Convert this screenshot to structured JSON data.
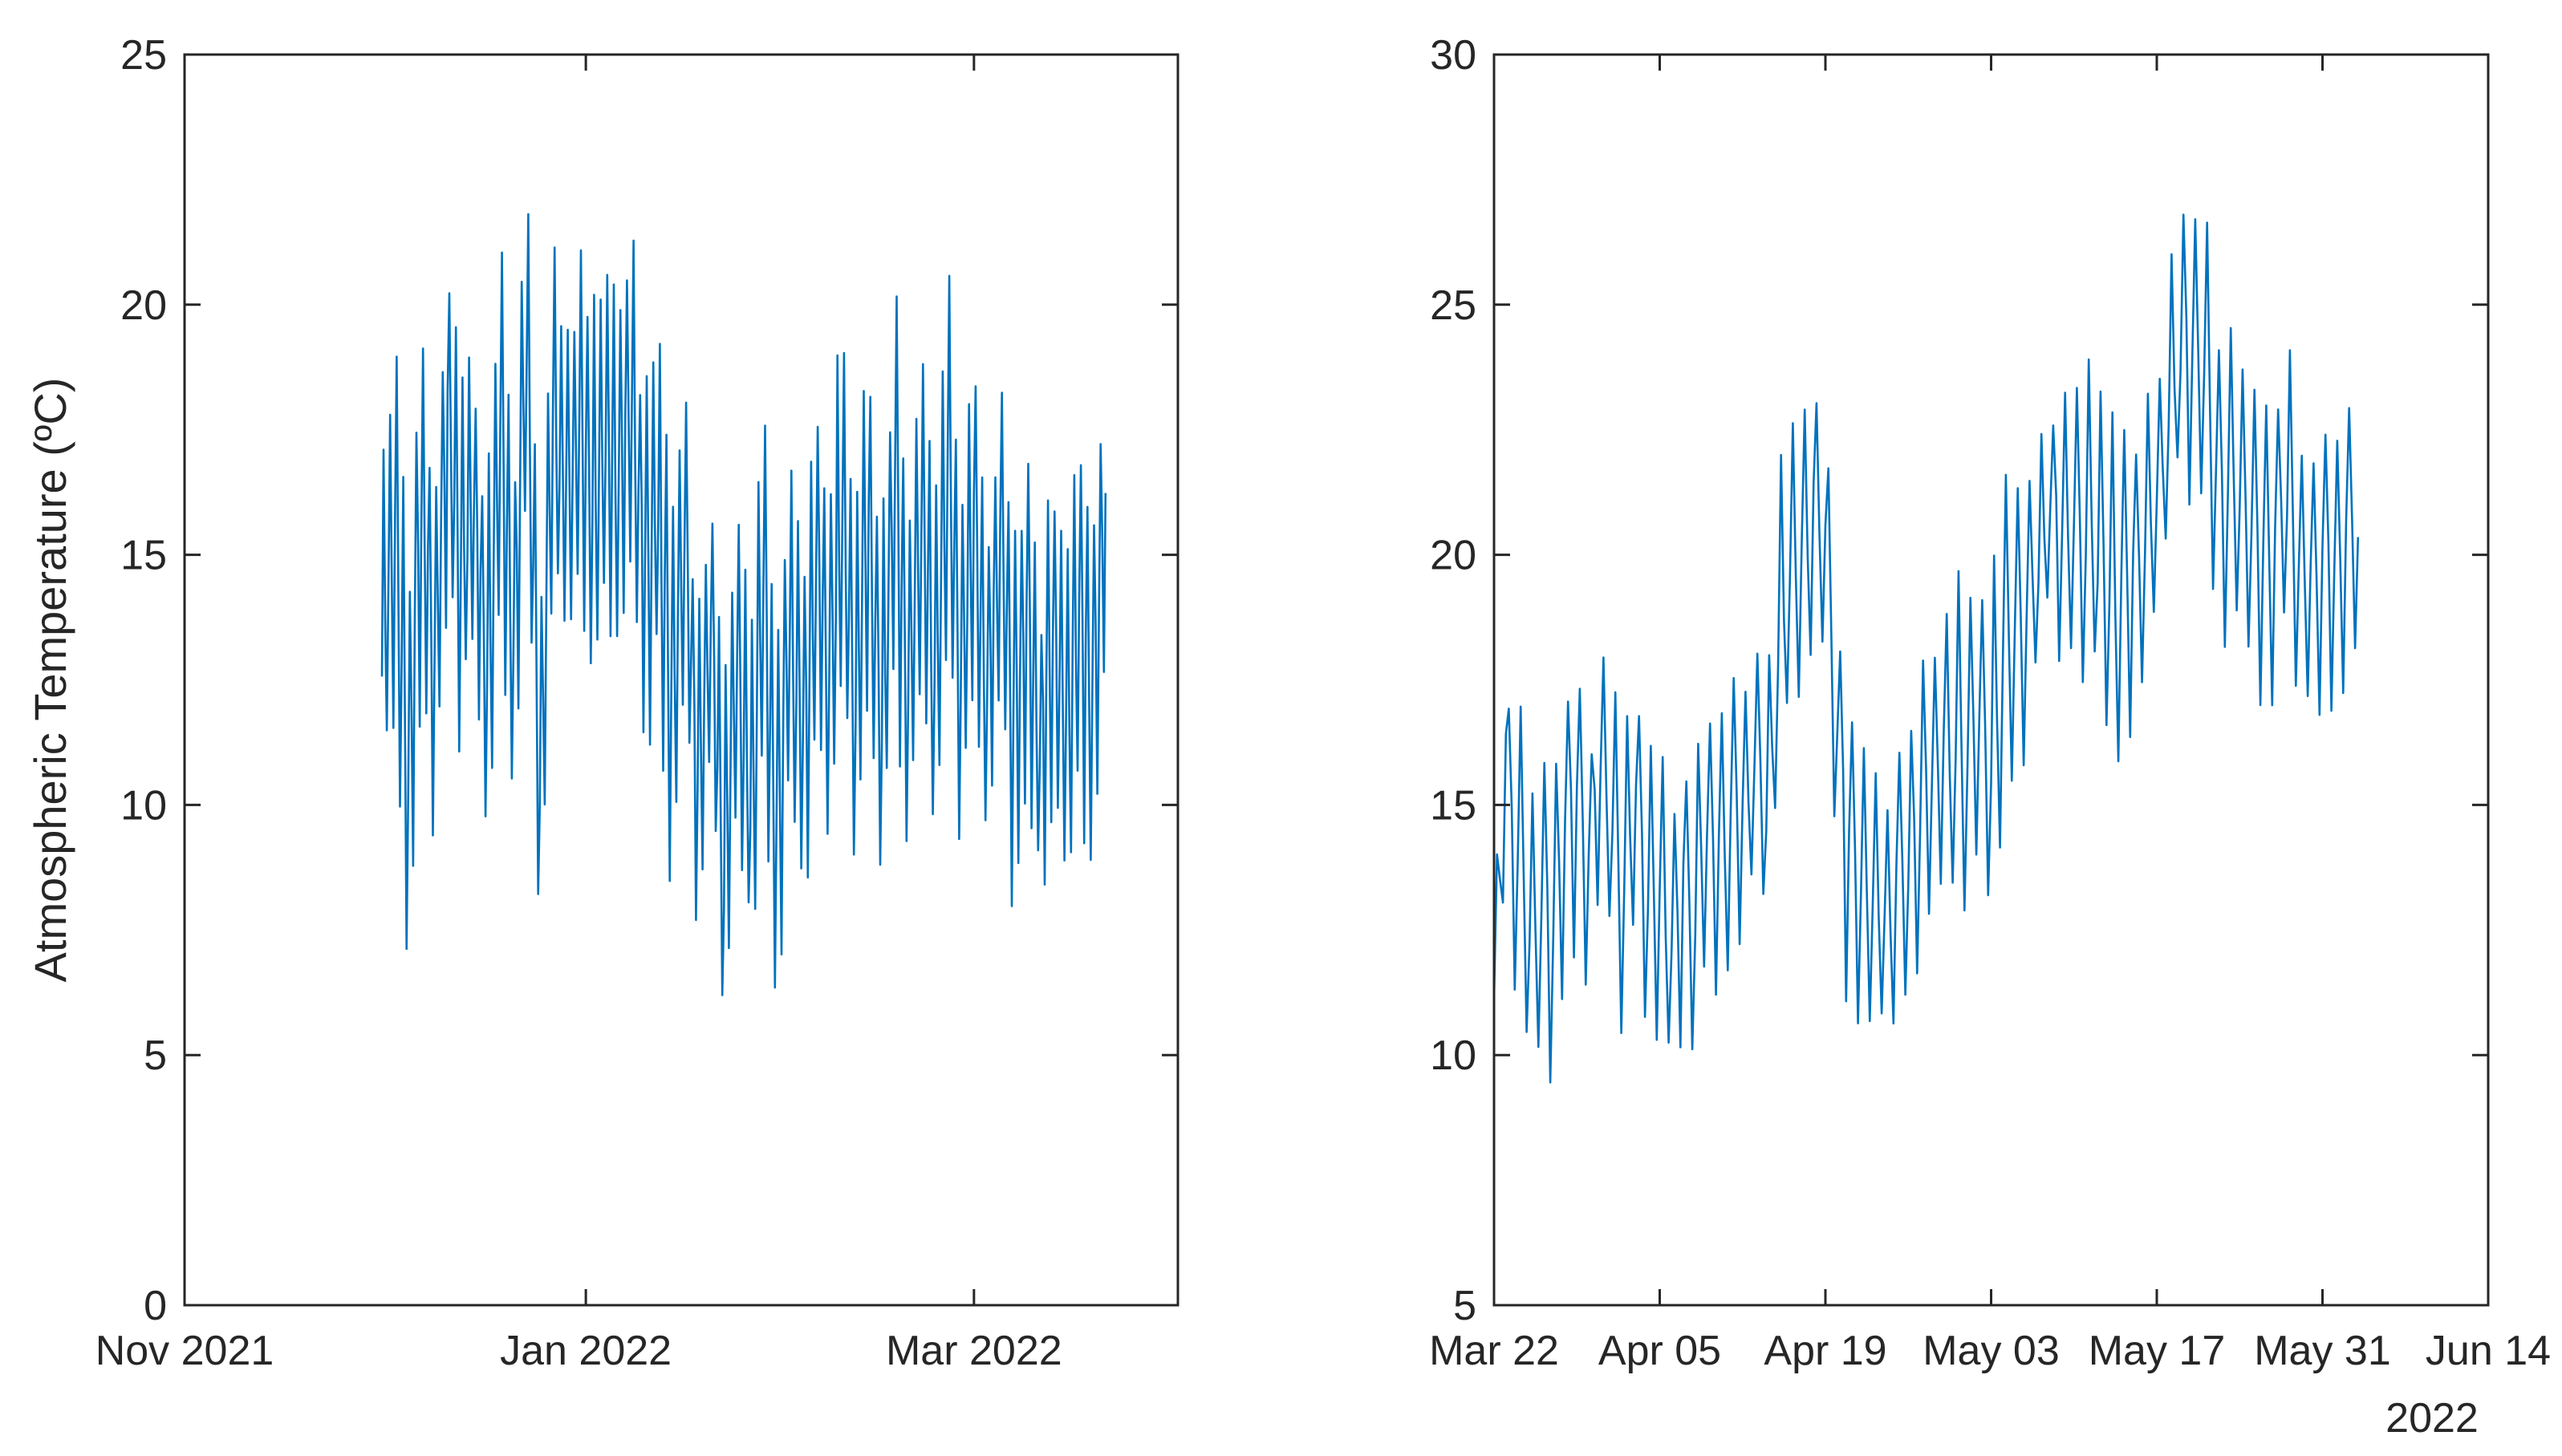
{
  "chart_data": [
    {
      "type": "line",
      "title": "",
      "xlabel": "",
      "ylabel": "Atmospheric Temperature (ºC)",
      "x_range": [
        "2021-11-01",
        "2022-04-01"
      ],
      "ylim": [
        0,
        25
      ],
      "y_ticks": [
        0,
        5,
        10,
        15,
        20,
        25
      ],
      "x_ticks": [
        {
          "date": "2021-11-01",
          "label": "Nov 2021"
        },
        {
          "date": "2022-01-01",
          "label": "Jan 2022"
        },
        {
          "date": "2022-03-01",
          "label": "Mar 2022"
        }
      ],
      "grid": false,
      "series": [
        {
          "color": "#0072BD",
          "points": [
            [
              "2021-12-01",
              12.8
            ],
            [
              "2021-12-03",
              15.5
            ],
            [
              "2021-12-05",
              10.5
            ],
            [
              "2021-12-07",
              16.2
            ],
            [
              "2021-12-09",
              13.0
            ],
            [
              "2021-12-11",
              17.8
            ],
            [
              "2021-12-13",
              14.5
            ],
            [
              "2021-12-15",
              16.0
            ],
            [
              "2021-12-17",
              12.5
            ],
            [
              "2021-12-19",
              17.5
            ],
            [
              "2021-12-21",
              13.5
            ],
            [
              "2021-12-23",
              19.0
            ],
            [
              "2021-12-25",
              10.5
            ],
            [
              "2021-12-27",
              18.0
            ],
            [
              "2021-12-29",
              15.8
            ],
            [
              "2021-12-31",
              17.2
            ],
            [
              "2022-01-02",
              16.0
            ],
            [
              "2022-01-04",
              17.5
            ],
            [
              "2022-01-06",
              16.5
            ],
            [
              "2022-01-08",
              18.0
            ],
            [
              "2022-01-10",
              14.5
            ],
            [
              "2022-01-12",
              16.0
            ],
            [
              "2022-01-14",
              12.0
            ],
            [
              "2022-01-16",
              15.5
            ],
            [
              "2022-01-18",
              10.5
            ],
            [
              "2022-01-20",
              14.0
            ],
            [
              "2022-01-22",
              8.5
            ],
            [
              "2022-01-24",
              13.0
            ],
            [
              "2022-01-26",
              10.0
            ],
            [
              "2022-01-28",
              14.5
            ],
            [
              "2022-01-30",
              9.5
            ],
            [
              "2022-02-01",
              14.0
            ],
            [
              "2022-02-03",
              11.0
            ],
            [
              "2022-02-05",
              15.0
            ],
            [
              "2022-02-07",
              12.5
            ],
            [
              "2022-02-09",
              16.0
            ],
            [
              "2022-02-11",
              12.0
            ],
            [
              "2022-02-13",
              15.5
            ],
            [
              "2022-02-15",
              11.5
            ],
            [
              "2022-02-17",
              16.5
            ],
            [
              "2022-02-19",
              12.0
            ],
            [
              "2022-02-21",
              15.8
            ],
            [
              "2022-02-23",
              12.5
            ],
            [
              "2022-02-25",
              17.0
            ],
            [
              "2022-02-27",
              12.5
            ],
            [
              "2022-03-01",
              16.0
            ],
            [
              "2022-03-03",
              12.0
            ],
            [
              "2022-03-05",
              15.5
            ],
            [
              "2022-03-07",
              11.5
            ],
            [
              "2022-03-09",
              14.5
            ],
            [
              "2022-03-11",
              11.0
            ],
            [
              "2022-03-13",
              13.5
            ],
            [
              "2022-03-15",
              11.5
            ],
            [
              "2022-03-17",
              14.0
            ],
            [
              "2022-03-19",
              12.0
            ],
            [
              "2022-03-21",
              16.5
            ]
          ]
        }
      ]
    },
    {
      "type": "line",
      "title": "",
      "xlabel": "",
      "ylabel": "",
      "x_range": [
        "2022-03-22",
        "2022-06-14"
      ],
      "ylim": [
        5,
        30
      ],
      "y_ticks": [
        5,
        10,
        15,
        20,
        25,
        30
      ],
      "x_ticks": [
        {
          "date": "2022-03-22",
          "label": "Mar 22"
        },
        {
          "date": "2022-04-05",
          "label": "Apr 05"
        },
        {
          "date": "2022-04-19",
          "label": "Apr 19"
        },
        {
          "date": "2022-05-03",
          "label": "May 03"
        },
        {
          "date": "2022-05-17",
          "label": "May 17"
        },
        {
          "date": "2022-05-31",
          "label": "May 31"
        },
        {
          "date": "2022-06-14",
          "label": "Jun 14"
        }
      ],
      "x_secondary_label": "2022",
      "grid": false,
      "series": [
        {
          "color": "#0072BD",
          "points": [
            [
              "2022-03-22",
              11.0
            ],
            [
              "2022-03-23",
              16.0
            ],
            [
              "2022-03-24",
              13.5
            ],
            [
              "2022-03-25",
              12.8
            ],
            [
              "2022-03-26",
              13.2
            ],
            [
              "2022-03-27",
              12.5
            ],
            [
              "2022-03-28",
              14.5
            ],
            [
              "2022-03-29",
              15.0
            ],
            [
              "2022-03-30",
              14.0
            ],
            [
              "2022-03-31",
              15.5
            ],
            [
              "2022-04-01",
              14.5
            ],
            [
              "2022-04-02",
              13.5
            ],
            [
              "2022-04-03",
              15.0
            ],
            [
              "2022-04-04",
              13.0
            ],
            [
              "2022-04-05",
              13.5
            ],
            [
              "2022-04-06",
              12.0
            ],
            [
              "2022-04-07",
              13.5
            ],
            [
              "2022-04-08",
              13.0
            ],
            [
              "2022-04-09",
              14.5
            ],
            [
              "2022-04-10",
              14.0
            ],
            [
              "2022-04-11",
              14.5
            ],
            [
              "2022-04-12",
              15.0
            ],
            [
              "2022-04-13",
              16.0
            ],
            [
              "2022-04-14",
              15.0
            ],
            [
              "2022-04-15",
              18.0
            ],
            [
              "2022-04-16",
              19.5
            ],
            [
              "2022-04-17",
              20.0
            ],
            [
              "2022-04-18",
              21.0
            ],
            [
              "2022-04-19",
              20.5
            ],
            [
              "2022-04-20",
              16.5
            ],
            [
              "2022-04-21",
              14.0
            ],
            [
              "2022-04-22",
              13.5
            ],
            [
              "2022-04-23",
              13.0
            ],
            [
              "2022-04-24",
              12.5
            ],
            [
              "2022-04-25",
              13.5
            ],
            [
              "2022-04-26",
              14.0
            ],
            [
              "2022-04-27",
              15.0
            ],
            [
              "2022-04-28",
              15.5
            ],
            [
              "2022-04-29",
              16.0
            ],
            [
              "2022-04-30",
              16.5
            ],
            [
              "2022-05-01",
              16.0
            ],
            [
              "2022-05-02",
              16.5
            ],
            [
              "2022-05-03",
              16.0
            ],
            [
              "2022-05-04",
              18.0
            ],
            [
              "2022-05-05",
              19.0
            ],
            [
              "2022-05-06",
              18.5
            ],
            [
              "2022-05-07",
              20.0
            ],
            [
              "2022-05-08",
              21.0
            ],
            [
              "2022-05-09",
              20.5
            ],
            [
              "2022-05-10",
              21.0
            ],
            [
              "2022-05-11",
              20.5
            ],
            [
              "2022-05-12",
              20.0
            ],
            [
              "2022-05-13",
              19.5
            ],
            [
              "2022-05-14",
              19.0
            ],
            [
              "2022-05-15",
              19.5
            ],
            [
              "2022-05-16",
              20.5
            ],
            [
              "2022-05-17",
              21.0
            ],
            [
              "2022-05-18",
              23.0
            ],
            [
              "2022-05-19",
              24.0
            ],
            [
              "2022-05-20",
              24.5
            ],
            [
              "2022-05-21",
              24.0
            ],
            [
              "2022-05-22",
              22.0
            ],
            [
              "2022-05-23",
              21.0
            ],
            [
              "2022-05-24",
              21.5
            ],
            [
              "2022-05-25",
              20.5
            ],
            [
              "2022-05-26",
              20.0
            ],
            [
              "2022-05-27",
              20.5
            ],
            [
              "2022-05-28",
              21.0
            ],
            [
              "2022-05-29",
              20.0
            ],
            [
              "2022-05-30",
              19.5
            ],
            [
              "2022-05-31",
              20.0
            ],
            [
              "2022-06-01",
              19.5
            ],
            [
              "2022-06-02",
              20.5
            ],
            [
              "2022-06-03",
              20.0
            ]
          ]
        }
      ]
    }
  ]
}
